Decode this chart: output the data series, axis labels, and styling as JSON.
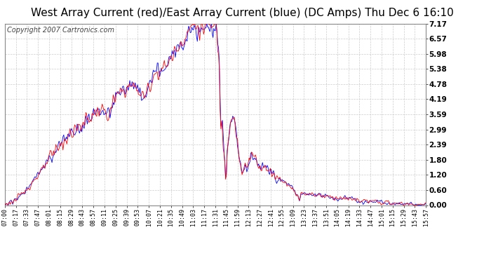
{
  "title": "West Array Current (red)/East Array Current (blue) (DC Amps) Thu Dec 6 16:10",
  "copyright": "Copyright 2007 Cartronics.com",
  "yticks": [
    0.0,
    0.6,
    1.2,
    1.8,
    2.39,
    2.99,
    3.59,
    4.19,
    4.78,
    5.38,
    5.98,
    6.57,
    7.17
  ],
  "ylim": [
    0.0,
    7.17
  ],
  "xtick_labels": [
    "07:00",
    "07:17",
    "07:33",
    "07:47",
    "08:01",
    "08:15",
    "08:29",
    "08:43",
    "08:57",
    "09:11",
    "09:25",
    "09:39",
    "09:53",
    "10:07",
    "10:21",
    "10:35",
    "10:49",
    "11:03",
    "11:17",
    "11:31",
    "11:45",
    "11:59",
    "12:13",
    "12:27",
    "12:41",
    "12:55",
    "13:09",
    "13:23",
    "13:37",
    "13:51",
    "14:05",
    "14:19",
    "14:33",
    "14:47",
    "15:01",
    "15:15",
    "15:29",
    "15:43",
    "15:57"
  ],
  "background_color": "#ffffff",
  "plot_bg_color": "#ffffff",
  "grid_color": "#cccccc",
  "red_color": "#ff0000",
  "blue_color": "#0000ff",
  "title_fontsize": 11,
  "copyright_fontsize": 7
}
